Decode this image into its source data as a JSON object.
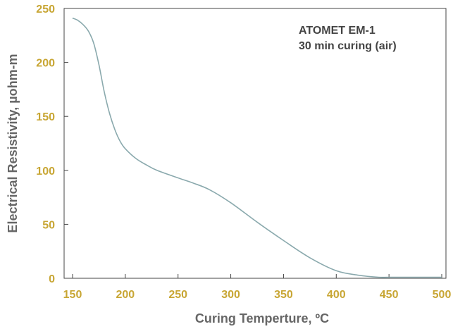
{
  "chart_data": {
    "type": "line",
    "title": "",
    "xlabel": "Curing Temperture, ºC",
    "ylabel": "Electrical Resistivity, µohm-m",
    "xlim": [
      150,
      500
    ],
    "ylim": [
      0,
      250
    ],
    "xticks": [
      150,
      200,
      250,
      300,
      350,
      400,
      450,
      500
    ],
    "yticks": [
      0,
      50,
      100,
      150,
      200,
      250
    ],
    "annotation": [
      "ATOMET EM-1",
      "30 min curing (air)"
    ],
    "grid": false,
    "colors": {
      "line": "#8aa9ad",
      "ticks": "#c8a634",
      "axis_title": "#666666",
      "frame": "#444444"
    },
    "series": [
      {
        "x": [
          150,
          155,
          160,
          165,
          170,
          175,
          180,
          185,
          190,
          195,
          200,
          210,
          220,
          230,
          250,
          265,
          280,
          300,
          325,
          350,
          375,
          400,
          420,
          440,
          450,
          475,
          500
        ],
        "values": [
          241,
          239,
          235,
          229,
          218,
          198,
          173,
          153,
          138,
          127,
          120,
          111,
          105,
          100,
          93,
          88,
          82,
          70,
          52,
          35,
          19,
          7,
          3,
          1,
          1,
          1,
          1
        ]
      }
    ]
  }
}
